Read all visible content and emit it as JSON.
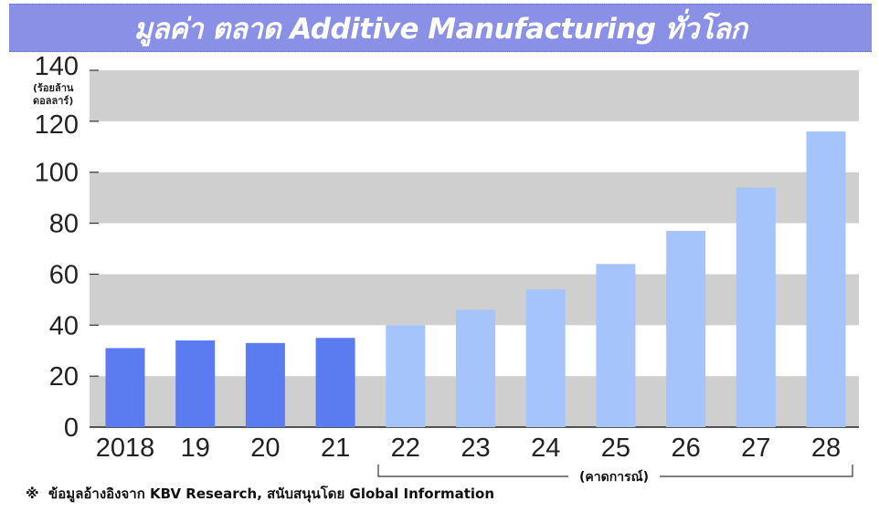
{
  "chart_data": {
    "type": "bar",
    "title": "มูลค่า ตลาด Additive Manufacturing ทั่วโลก",
    "ylabel": "(ร้อยล้าน ดอลลาร์)",
    "ylabel_lines": [
      "(ร้อยล้าน",
      "ดอลลาร์)"
    ],
    "xlabel": "",
    "ylim": [
      0,
      140
    ],
    "yticks": [
      0,
      20,
      40,
      60,
      80,
      100,
      120,
      140
    ],
    "grid": "alternating horizontal bands",
    "categories": [
      "2018",
      "19",
      "20",
      "21",
      "22",
      "23",
      "24",
      "25",
      "26",
      "27",
      "28"
    ],
    "values": [
      31,
      34,
      33,
      35,
      40,
      46,
      54,
      64,
      77,
      94,
      116
    ],
    "forecast_from_index": 4,
    "forecast_label": "(คาดการณ์)",
    "colors": {
      "actual": "#5b7cf0",
      "forecast": "#a4c4fb",
      "band": "#cfcfcf",
      "title_bg": "#8a90e6"
    }
  },
  "footnote": {
    "symbol": "※",
    "text": "ข้อมูลอ้างอิงจาก KBV Research, สนับสนุนโดย Global Information"
  }
}
